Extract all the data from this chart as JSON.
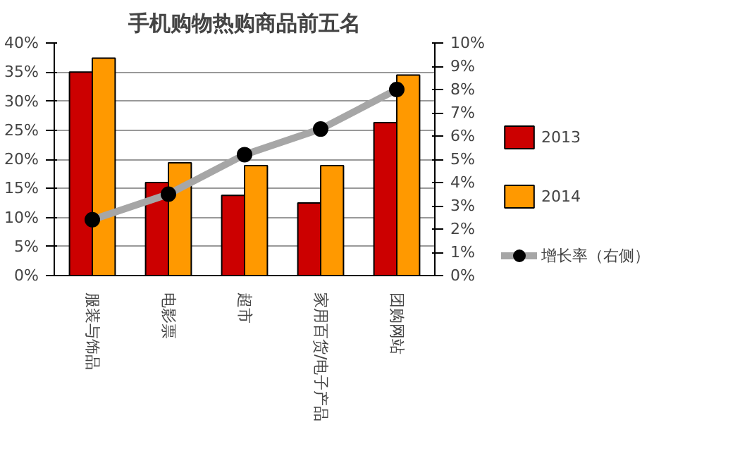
{
  "chart_data": {
    "type": "bar",
    "title": "手机购物热购商品前五名",
    "categories": [
      "服装与饰品",
      "电影票",
      "超市",
      "家用百货/电子产品",
      "团购网站"
    ],
    "series": [
      {
        "name": "2013",
        "color": "#cc0000",
        "values": [
          35,
          16,
          13.8,
          12.5,
          26.3
        ]
      },
      {
        "name": "2014",
        "color": "#ff9900",
        "values": [
          37.4,
          19.4,
          18.9,
          18.9,
          34.5
        ]
      },
      {
        "name": "增长率（右侧）",
        "type": "line",
        "axis": "y2",
        "color": "#a6a6a6",
        "marker": "circle",
        "values": [
          2.4,
          3.5,
          5.2,
          6.3,
          8.0
        ]
      }
    ],
    "ylim": [
      0,
      40
    ],
    "yticks": [
      {
        "value": 0,
        "label": "0%"
      },
      {
        "value": 5,
        "label": "5%"
      },
      {
        "value": 10,
        "label": "10%"
      },
      {
        "value": 15,
        "label": "15%"
      },
      {
        "value": 20,
        "label": "20%"
      },
      {
        "value": 25,
        "label": "25%"
      },
      {
        "value": 30,
        "label": "30%"
      },
      {
        "value": 35,
        "label": "35%"
      },
      {
        "value": 40,
        "label": "40%"
      }
    ],
    "y2lim": [
      0,
      10
    ],
    "y2ticks": [
      {
        "value": 0,
        "label": "0%"
      },
      {
        "value": 1,
        "label": "1%"
      },
      {
        "value": 2,
        "label": "2%"
      },
      {
        "value": 3,
        "label": "3%"
      },
      {
        "value": 4,
        "label": "4%"
      },
      {
        "value": 5,
        "label": "5%"
      },
      {
        "value": 6,
        "label": "6%"
      },
      {
        "value": 7,
        "label": "7%"
      },
      {
        "value": 8,
        "label": "8%"
      },
      {
        "value": 9,
        "label": "9%"
      },
      {
        "value": 10,
        "label": "10%"
      }
    ],
    "grid": "y",
    "legend": "right"
  }
}
